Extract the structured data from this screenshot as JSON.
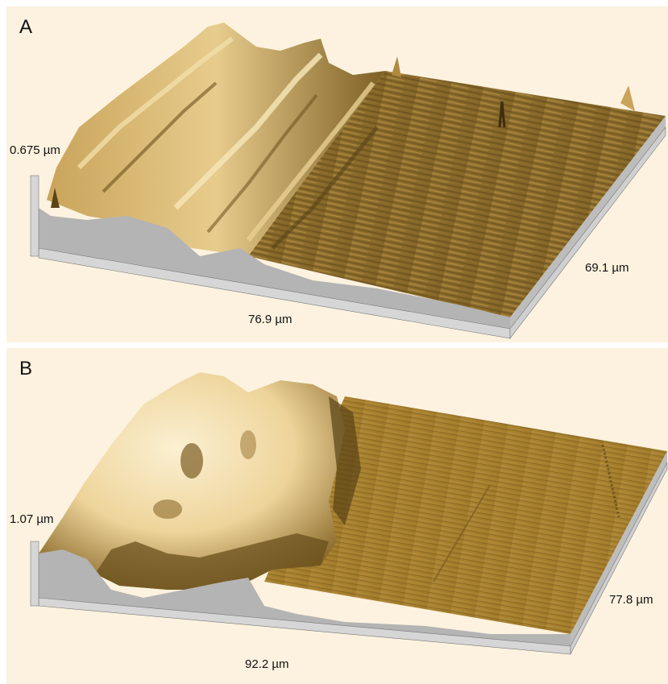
{
  "panels": [
    {
      "label": "A",
      "height_label": "0.675 µm",
      "x_label": "76.9 µm",
      "y_label": "69.1 µm"
    },
    {
      "label": "B",
      "height_label": "1.07 µm",
      "x_label": "92.2 µm",
      "y_label": "77.8 µm"
    }
  ],
  "colors": {
    "background": "#fcf2df",
    "surface_light": "#f3dfae",
    "surface_mid": "#b28a3c",
    "surface_dark": "#5a4317",
    "base_side": "#b4b4b4"
  }
}
